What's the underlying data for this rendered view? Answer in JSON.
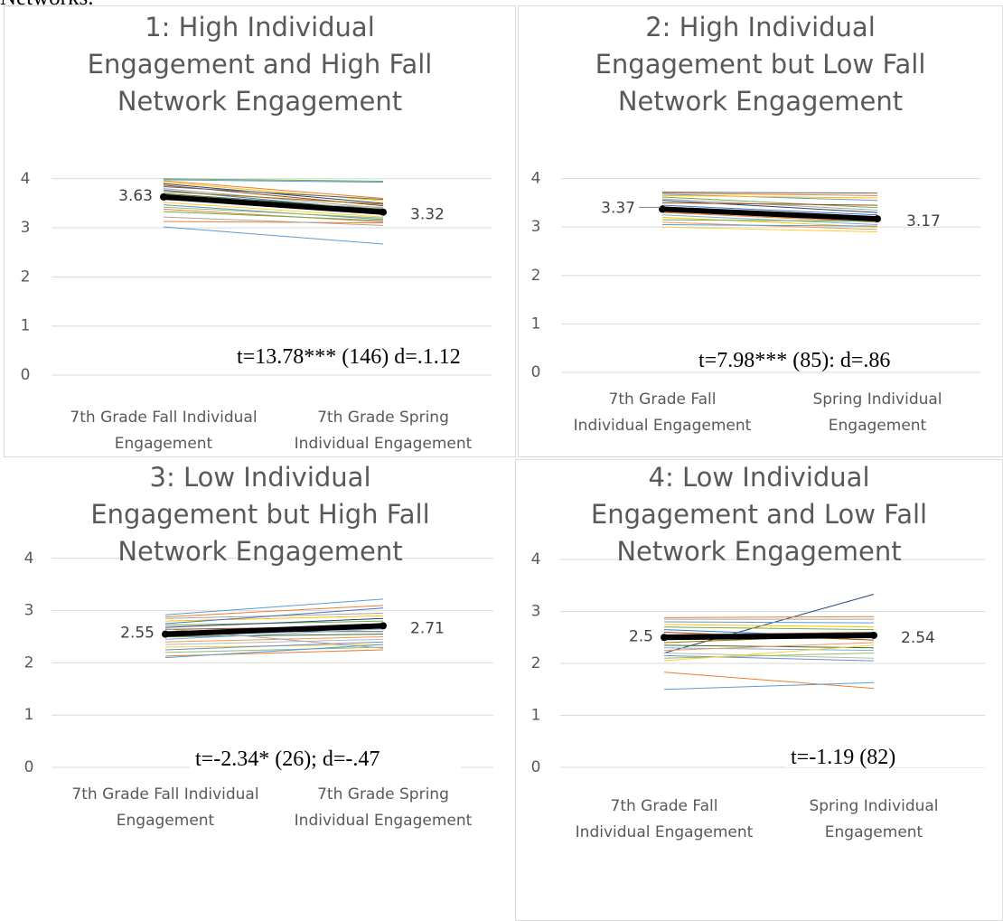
{
  "caption": "Networks.",
  "chart_data": [
    {
      "type": "line",
      "title_lines": [
        "1: High Individual",
        "Engagement and High Fall",
        "Network Engagement"
      ],
      "categories": [
        "7th Grade Fall Individual Engagement",
        "7th Grade Spring Individual Engagement"
      ],
      "category_lines": [
        [
          "7th Grade Fall Individual",
          "Engagement"
        ],
        [
          "7th Grade Spring",
          "Individual Engagement"
        ]
      ],
      "yticks": [
        0,
        1,
        2,
        3,
        4
      ],
      "ylim": [
        0,
        4
      ],
      "grid": true,
      "mean_series": {
        "values": [
          3.63,
          3.32
        ],
        "labels": [
          "3.63",
          "3.32"
        ]
      },
      "annotation": "t=13.78*** (146) d=.1.12",
      "individual_series": [
        {
          "values": [
            4.0,
            3.95
          ],
          "color": "#70ad47"
        },
        {
          "values": [
            3.98,
            3.93
          ],
          "color": "#5b9bd5"
        },
        {
          "values": [
            3.96,
            3.6
          ],
          "color": "#ed7d31"
        },
        {
          "values": [
            3.93,
            3.55
          ],
          "color": "#ffc000"
        },
        {
          "values": [
            3.9,
            3.5
          ],
          "color": "#264478"
        },
        {
          "values": [
            3.87,
            3.45
          ],
          "color": "#9e480e"
        },
        {
          "values": [
            3.84,
            3.58
          ],
          "color": "#636363"
        },
        {
          "values": [
            3.8,
            3.4
          ],
          "color": "#a5a5a5"
        },
        {
          "values": [
            3.77,
            3.35
          ],
          "color": "#4472c4"
        },
        {
          "values": [
            3.74,
            3.48
          ],
          "color": "#997300"
        },
        {
          "values": [
            3.7,
            3.38
          ],
          "color": "#43682b"
        },
        {
          "values": [
            3.67,
            3.3
          ],
          "color": "#7cafdd"
        },
        {
          "values": [
            3.6,
            3.28
          ],
          "color": "#f1975a"
        },
        {
          "values": [
            3.57,
            3.42
          ],
          "color": "#b7b7b7"
        },
        {
          "values": [
            3.52,
            3.22
          ],
          "color": "#ffcd33"
        },
        {
          "values": [
            3.47,
            3.17
          ],
          "color": "#698ed0"
        },
        {
          "values": [
            3.42,
            3.2
          ],
          "color": "#8cc168"
        },
        {
          "values": [
            3.38,
            3.12
          ],
          "color": "#ed7d31"
        },
        {
          "values": [
            3.33,
            3.15
          ],
          "color": "#70ad47"
        },
        {
          "values": [
            3.13,
            3.1
          ],
          "color": "#ed7d31"
        },
        {
          "values": [
            3.02,
            2.67
          ],
          "color": "#5b9bd5"
        },
        {
          "values": [
            3.22,
            3.05
          ],
          "color": "#a5a5a5"
        }
      ]
    },
    {
      "type": "line",
      "title_lines": [
        "2: High Individual",
        "Engagement but Low Fall",
        "Network Engagement"
      ],
      "categories": [
        "7th Grade Fall Individual Engagement",
        "Spring Individual Engagement"
      ],
      "category_lines": [
        [
          "7th Grade Fall",
          "Individual Engagement"
        ],
        [
          "Spring Individual",
          "Engagement"
        ]
      ],
      "yticks": [
        0,
        1,
        2,
        3,
        4
      ],
      "ylim": [
        0,
        4
      ],
      "grid": true,
      "mean_series": {
        "values": [
          3.37,
          3.17
        ],
        "labels": [
          "3.37",
          "3.17"
        ]
      },
      "annotation": "t=7.98*** (85): d=.86",
      "individual_series": [
        {
          "values": [
            3.72,
            3.7
          ],
          "color": "#636363"
        },
        {
          "values": [
            3.7,
            3.65
          ],
          "color": "#ed7d31"
        },
        {
          "values": [
            3.68,
            3.55
          ],
          "color": "#5b9bd5"
        },
        {
          "values": [
            3.65,
            3.6
          ],
          "color": "#ffc000"
        },
        {
          "values": [
            3.62,
            3.4
          ],
          "color": "#70ad47"
        },
        {
          "values": [
            3.58,
            3.35
          ],
          "color": "#a5a5a5"
        },
        {
          "values": [
            3.55,
            3.3
          ],
          "color": "#264478"
        },
        {
          "values": [
            3.5,
            3.45
          ],
          "color": "#9e480e"
        },
        {
          "values": [
            3.45,
            3.25
          ],
          "color": "#4472c4"
        },
        {
          "values": [
            3.4,
            3.15
          ],
          "color": "#997300"
        },
        {
          "values": [
            3.35,
            3.2
          ],
          "color": "#43682b"
        },
        {
          "values": [
            3.3,
            3.1
          ],
          "color": "#ed7d31"
        },
        {
          "values": [
            3.25,
            3.05
          ],
          "color": "#7cafdd"
        },
        {
          "values": [
            3.2,
            3.0
          ],
          "color": "#ffc000"
        },
        {
          "values": [
            3.15,
            3.12
          ],
          "color": "#70ad47"
        },
        {
          "values": [
            3.1,
            2.95
          ],
          "color": "#f1975a"
        },
        {
          "values": [
            3.05,
            3.02
          ],
          "color": "#5b9bd5"
        },
        {
          "values": [
            3.0,
            2.9
          ],
          "color": "#ffcd33"
        }
      ]
    },
    {
      "type": "line",
      "title_lines": [
        "3: Low Individual",
        "Engagement but High Fall",
        "Network Engagement"
      ],
      "categories": [
        "7th Grade Fall Individual Engagement",
        "7th Grade Spring Individual Engagement"
      ],
      "category_lines": [
        [
          "7th Grade Fall Individual",
          "Engagement"
        ],
        [
          "7th Grade Spring",
          "Individual Engagement"
        ]
      ],
      "yticks": [
        0,
        1,
        2,
        3,
        4
      ],
      "ylim": [
        0,
        4
      ],
      "grid": true,
      "mean_series": {
        "values": [
          2.55,
          2.71
        ],
        "labels": [
          "2.55",
          "2.71"
        ]
      },
      "annotation": "t=-2.34* (26); d=-.47",
      "individual_series": [
        {
          "values": [
            2.92,
            3.22
          ],
          "color": "#5b9bd5"
        },
        {
          "values": [
            2.88,
            3.1
          ],
          "color": "#ed7d31"
        },
        {
          "values": [
            2.85,
            2.95
          ],
          "color": "#a5a5a5"
        },
        {
          "values": [
            2.8,
            2.9
          ],
          "color": "#ffc000"
        },
        {
          "values": [
            2.75,
            3.05
          ],
          "color": "#4472c4"
        },
        {
          "values": [
            2.72,
            2.8
          ],
          "color": "#70ad47"
        },
        {
          "values": [
            2.68,
            2.85
          ],
          "color": "#264478"
        },
        {
          "values": [
            2.64,
            2.7
          ],
          "color": "#9e480e"
        },
        {
          "values": [
            2.6,
            2.6
          ],
          "color": "#636363"
        },
        {
          "values": [
            2.56,
            2.75
          ],
          "color": "#997300"
        },
        {
          "values": [
            2.5,
            2.55
          ],
          "color": "#43682b"
        },
        {
          "values": [
            2.45,
            2.65
          ],
          "color": "#7cafdd"
        },
        {
          "values": [
            2.4,
            2.5
          ],
          "color": "#f1975a"
        },
        {
          "values": [
            2.35,
            2.45
          ],
          "color": "#b7b7b7"
        },
        {
          "values": [
            2.3,
            2.35
          ],
          "color": "#ffcd33"
        },
        {
          "values": [
            2.25,
            2.4
          ],
          "color": "#698ed0"
        },
        {
          "values": [
            2.2,
            2.3
          ],
          "color": "#8cc168"
        },
        {
          "values": [
            2.13,
            2.25
          ],
          "color": "#ed7d31"
        },
        {
          "values": [
            2.1,
            2.35
          ],
          "color": "#5b9bd5"
        },
        {
          "values": [
            2.65,
            2.28
          ],
          "color": "#a5a5a5"
        }
      ]
    },
    {
      "type": "line",
      "title_lines": [
        "4: Low Individual",
        "Engagement and Low Fall",
        "Network Engagement"
      ],
      "categories": [
        "7th Grade Fall Individual Engagement",
        "Spring Individual Engagement"
      ],
      "category_lines": [
        [
          "7th Grade Fall",
          "Individual Engagement"
        ],
        [
          "Spring Individual",
          "Engagement"
        ]
      ],
      "yticks": [
        0,
        1,
        2,
        3,
        4
      ],
      "ylim": [
        0,
        4
      ],
      "grid": true,
      "mean_series": {
        "values": [
          2.5,
          2.54
        ],
        "labels": [
          "2.5",
          "2.54"
        ]
      },
      "annotation": "t=-1.19 (82)",
      "individual_series": [
        {
          "values": [
            2.2,
            3.33
          ],
          "color": "#264478"
        },
        {
          "values": [
            2.88,
            2.9
          ],
          "color": "#ed7d31"
        },
        {
          "values": [
            2.85,
            2.85
          ],
          "color": "#a5a5a5"
        },
        {
          "values": [
            2.8,
            2.78
          ],
          "color": "#5b9bd5"
        },
        {
          "values": [
            2.75,
            2.7
          ],
          "color": "#ffc000"
        },
        {
          "values": [
            2.7,
            2.65
          ],
          "color": "#70ad47"
        },
        {
          "values": [
            2.65,
            2.5
          ],
          "color": "#4472c4"
        },
        {
          "values": [
            2.6,
            2.45
          ],
          "color": "#9e480e"
        },
        {
          "values": [
            2.55,
            2.6
          ],
          "color": "#636363"
        },
        {
          "values": [
            2.4,
            2.55
          ],
          "color": "#997300"
        },
        {
          "values": [
            2.35,
            2.3
          ],
          "color": "#43682b"
        },
        {
          "values": [
            2.3,
            2.25
          ],
          "color": "#7cafdd"
        },
        {
          "values": [
            2.25,
            2.4
          ],
          "color": "#f1975a"
        },
        {
          "values": [
            2.2,
            2.1
          ],
          "color": "#b7b7b7"
        },
        {
          "values": [
            2.15,
            2.05
          ],
          "color": "#698ed0"
        },
        {
          "values": [
            2.1,
            2.2
          ],
          "color": "#8cc168"
        },
        {
          "values": [
            2.05,
            2.35
          ],
          "color": "#ffcd33"
        },
        {
          "values": [
            1.83,
            1.52
          ],
          "color": "#ed7d31"
        },
        {
          "values": [
            1.5,
            1.63
          ],
          "color": "#5b9bd5"
        }
      ]
    }
  ]
}
